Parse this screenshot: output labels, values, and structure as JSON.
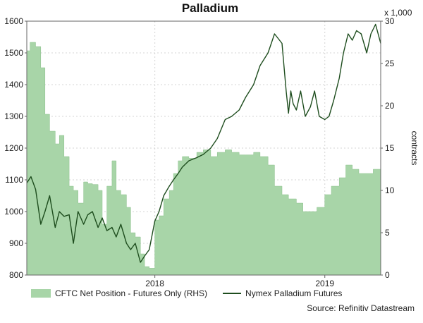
{
  "chart_data": {
    "type": "line",
    "title": "Palladium",
    "left_axis": {
      "ticks": [
        "1600",
        "1500",
        "1400",
        "1300",
        "1200",
        "1100",
        "1000",
        "900",
        "800"
      ],
      "ylim": [
        800,
        1600
      ]
    },
    "right_axis": {
      "ticks": [
        "30",
        "25",
        "20",
        "15",
        "10",
        "5",
        "0"
      ],
      "ylim": [
        0,
        30
      ],
      "unit_label": "x 1,000",
      "label": "contracts"
    },
    "x_ticks": [
      "2018",
      "2019"
    ],
    "x_range": [
      "2017-04-01",
      "2019-05-01"
    ],
    "grid": true,
    "legend_position": "bottom-left",
    "series": [
      {
        "name": "CFTC Net Position - Futures Only (RHS)",
        "type": "area",
        "axis": "right",
        "color": "#a8d5a8",
        "x": [
          "2017-04-01",
          "2017-04-08",
          "2017-04-20",
          "2017-05-01",
          "2017-05-10",
          "2017-05-20",
          "2017-06-01",
          "2017-06-10",
          "2017-06-20",
          "2017-07-01",
          "2017-07-10",
          "2017-07-20",
          "2017-08-01",
          "2017-08-10",
          "2017-08-20",
          "2017-09-01",
          "2017-09-10",
          "2017-09-20",
          "2017-10-01",
          "2017-10-10",
          "2017-10-20",
          "2017-11-01",
          "2017-11-10",
          "2017-11-20",
          "2017-12-01",
          "2017-12-10",
          "2017-12-20",
          "2018-01-01",
          "2018-01-10",
          "2018-01-20",
          "2018-02-01",
          "2018-02-10",
          "2018-02-20",
          "2018-03-01",
          "2018-03-15",
          "2018-04-01",
          "2018-04-15",
          "2018-05-01",
          "2018-05-15",
          "2018-06-01",
          "2018-06-15",
          "2018-07-01",
          "2018-07-15",
          "2018-08-01",
          "2018-08-15",
          "2018-09-01",
          "2018-09-15",
          "2018-10-01",
          "2018-10-15",
          "2018-11-01",
          "2018-11-15",
          "2018-12-01",
          "2018-12-15",
          "2019-01-01",
          "2019-01-15",
          "2019-02-01",
          "2019-02-15",
          "2019-03-01",
          "2019-03-15",
          "2019-04-01",
          "2019-04-15",
          "2019-05-01"
        ],
        "values": [
          26.5,
          27.5,
          27,
          24.5,
          19,
          17,
          15.5,
          16.5,
          14,
          10.5,
          10,
          8.5,
          11,
          10.8,
          10.7,
          10,
          6,
          10.5,
          13.5,
          10,
          9.5,
          8,
          5,
          4.5,
          2.5,
          1,
          0.8,
          6.5,
          7,
          9,
          10,
          12,
          13.5,
          14,
          13.8,
          14.5,
          14.8,
          14,
          14.5,
          14.8,
          14.5,
          14.2,
          14.2,
          14.5,
          14,
          13,
          10.5,
          9.5,
          9,
          8.5,
          7.5,
          7.5,
          8,
          9.5,
          10.5,
          11.5,
          13,
          12.5,
          12,
          12,
          12.5,
          12
        ]
      },
      {
        "name": "Nymex Palladium Futures",
        "type": "line",
        "axis": "left",
        "color": "#1e4d1e",
        "x": [
          "2017-04-01",
          "2017-04-10",
          "2017-04-20",
          "2017-05-01",
          "2017-05-10",
          "2017-05-20",
          "2017-06-01",
          "2017-06-10",
          "2017-06-20",
          "2017-07-01",
          "2017-07-10",
          "2017-07-20",
          "2017-08-01",
          "2017-08-10",
          "2017-08-20",
          "2017-09-01",
          "2017-09-10",
          "2017-09-20",
          "2017-10-01",
          "2017-10-10",
          "2017-10-20",
          "2017-11-01",
          "2017-11-10",
          "2017-11-20",
          "2017-12-01",
          "2017-12-10",
          "2017-12-20",
          "2018-01-01",
          "2018-01-10",
          "2018-01-20",
          "2018-02-01",
          "2018-02-10",
          "2018-02-20",
          "2018-03-01",
          "2018-03-15",
          "2018-04-01",
          "2018-04-15",
          "2018-05-01",
          "2018-05-15",
          "2018-06-01",
          "2018-06-15",
          "2018-07-01",
          "2018-07-15",
          "2018-08-01",
          "2018-08-15",
          "2018-09-01",
          "2018-09-15",
          "2018-10-01",
          "2018-10-10",
          "2018-10-15",
          "2018-10-20",
          "2018-10-25",
          "2018-11-01",
          "2018-11-10",
          "2018-11-20",
          "2018-12-01",
          "2018-12-10",
          "2018-12-20",
          "2019-01-01",
          "2019-01-10",
          "2019-01-20",
          "2019-02-01",
          "2019-02-10",
          "2019-02-20",
          "2019-03-01",
          "2019-03-10",
          "2019-03-20",
          "2019-04-01",
          "2019-04-10",
          "2019-04-20",
          "2019-05-01"
        ],
        "values": [
          1090,
          1110,
          1070,
          960,
          1000,
          1050,
          950,
          1000,
          985,
          990,
          900,
          1000,
          960,
          990,
          1000,
          950,
          980,
          940,
          950,
          920,
          960,
          900,
          880,
          900,
          840,
          860,
          880,
          970,
          1000,
          1050,
          1080,
          1100,
          1120,
          1140,
          1160,
          1170,
          1180,
          1200,
          1230,
          1290,
          1300,
          1320,
          1360,
          1400,
          1460,
          1500,
          1560,
          1530,
          1380,
          1310,
          1380,
          1340,
          1320,
          1380,
          1300,
          1330,
          1380,
          1300,
          1290,
          1300,
          1350,
          1420,
          1500,
          1560,
          1540,
          1570,
          1560,
          1500,
          1560,
          1590,
          1530
        ]
      }
    ],
    "legend": {
      "area_label": "CFTC Net Position - Futures Only (RHS)",
      "line_label": "Nymex Palladium Futures"
    },
    "source": "Source: Refinitiv Datastream"
  }
}
